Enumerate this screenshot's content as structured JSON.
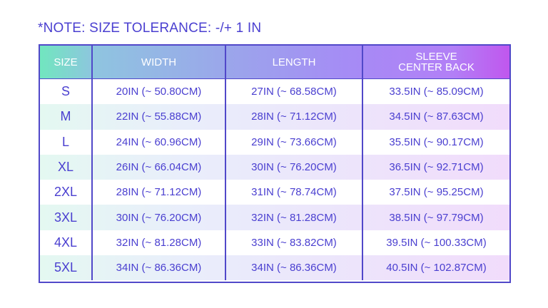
{
  "note": "*NOTE: SIZE TOLERANCE: -/+ 1 IN",
  "colors": {
    "text": "#4a3fd0",
    "border": "#5148c9",
    "header_gradient_start": "#71e6bf",
    "header_gradient_end": "#c057ee"
  },
  "table": {
    "headers": {
      "size": "SIZE",
      "width": "WIDTH",
      "length": "LENGTH",
      "sleeve_line1": "SLEEVE",
      "sleeve_line2": "CENTER BACK"
    },
    "rows": [
      {
        "size": "S",
        "width": "20IN (~ 50.80CM)",
        "length": "27IN (~ 68.58CM)",
        "sleeve": "33.5IN (~ 85.09CM)"
      },
      {
        "size": "M",
        "width": "22IN (~ 55.88CM)",
        "length": "28IN (~ 71.12CM)",
        "sleeve": "34.5IN (~ 87.63CM)"
      },
      {
        "size": "L",
        "width": "24IN (~ 60.96CM)",
        "length": "29IN (~ 73.66CM)",
        "sleeve": "35.5IN (~ 90.17CM)"
      },
      {
        "size": "XL",
        "width": "26IN (~ 66.04CM)",
        "length": "30IN (~ 76.20CM)",
        "sleeve": "36.5IN (~ 92.71CM)"
      },
      {
        "size": "2XL",
        "width": "28IN (~ 71.12CM)",
        "length": "31IN (~ 78.74CM)",
        "sleeve": "37.5IN (~ 95.25CM)"
      },
      {
        "size": "3XL",
        "width": "30IN (~ 76.20CM)",
        "length": "32IN (~ 81.28CM)",
        "sleeve": "38.5IN (~ 97.79CM)"
      },
      {
        "size": "4XL",
        "width": "32IN (~ 81.28CM)",
        "length": "33IN (~ 83.82CM)",
        "sleeve": "39.5IN (~ 100.33CM)"
      },
      {
        "size": "5XL",
        "width": "34IN (~ 86.36CM)",
        "length": "34IN (~ 86.36CM)",
        "sleeve": "40.5IN (~ 102.87CM)"
      }
    ]
  }
}
